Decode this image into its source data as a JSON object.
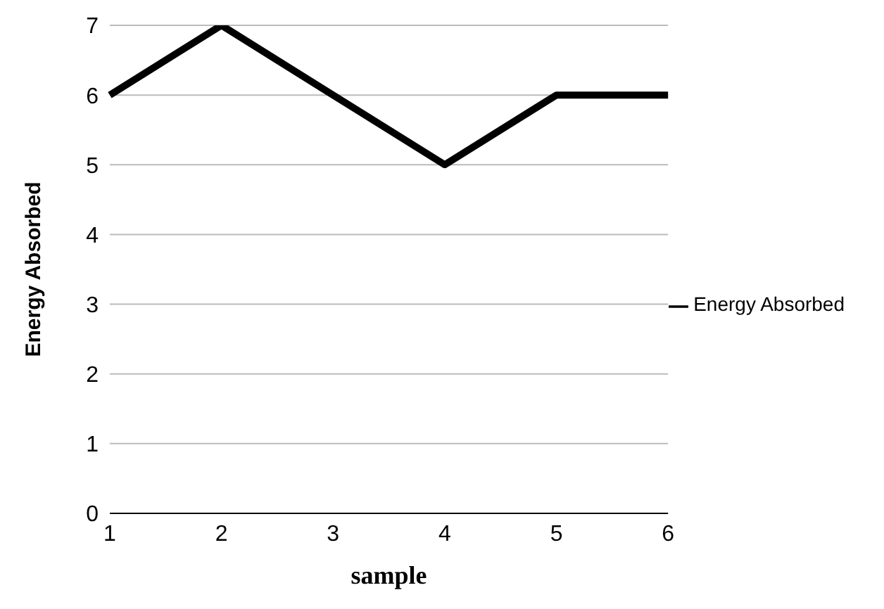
{
  "chart_data": {
    "type": "line",
    "xlabel": "sample",
    "ylabel": "Energy Absorbed",
    "categories": [
      "1",
      "2",
      "3",
      "4",
      "5",
      "6"
    ],
    "series": [
      {
        "name": "Energy Absorbed",
        "color": "#000000",
        "values": [
          6,
          7,
          6,
          5,
          6,
          6
        ]
      }
    ],
    "ylim": [
      0,
      7
    ],
    "yticks": [
      0,
      1,
      2,
      3,
      4,
      5,
      6,
      7
    ],
    "grid": "y",
    "legend": "right",
    "marker": "none"
  }
}
